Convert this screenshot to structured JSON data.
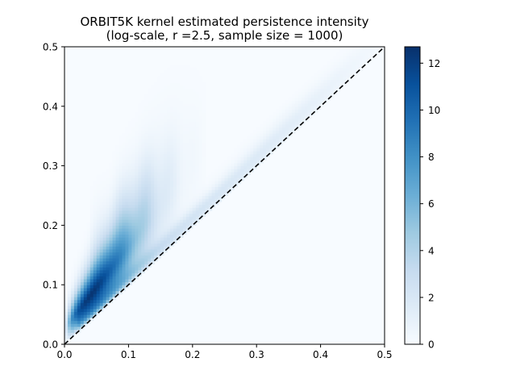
{
  "chart_data": {
    "type": "heatmap",
    "title": "ORBIT5K kernel estimated persistence intensity",
    "subtitle": "(log-scale, r =2.5, sample size = 1000)",
    "xlabel": "",
    "ylabel": "",
    "xlim": [
      0.0,
      0.5
    ],
    "ylim": [
      0.0,
      0.5
    ],
    "x_ticks": [
      "0.0",
      "0.1",
      "0.2",
      "0.3",
      "0.4",
      "0.5"
    ],
    "y_ticks": [
      "0.0",
      "0.1",
      "0.2",
      "0.3",
      "0.4",
      "0.5"
    ],
    "colorbar": {
      "min": 0,
      "max": 12.7,
      "ticks": [
        "0",
        "2",
        "4",
        "6",
        "8",
        "10",
        "12"
      ],
      "tick_values": [
        0,
        2,
        4,
        6,
        8,
        10,
        12
      ],
      "colormap": "Blues"
    },
    "diagonal": {
      "x": [
        0.0,
        0.5
      ],
      "y": [
        0.0,
        0.5
      ],
      "style": "dashed",
      "color": "#000000"
    },
    "grid": false,
    "intensity_regions": [
      {
        "description": "peak near diagonal",
        "x": [
          0.01,
          0.07
        ],
        "y": [
          0.02,
          0.12
        ],
        "value": 12.5
      },
      {
        "description": "main lobe",
        "x": [
          0.03,
          0.13
        ],
        "y": [
          0.05,
          0.2
        ],
        "value": 8
      },
      {
        "description": "upper fringe",
        "x": [
          0.05,
          0.2
        ],
        "y": [
          0.15,
          0.32
        ],
        "value": 2
      },
      {
        "description": "diagonal band",
        "x": [
          0.2,
          0.45
        ],
        "y": [
          0.22,
          0.5
        ],
        "value": 0.5
      }
    ]
  }
}
